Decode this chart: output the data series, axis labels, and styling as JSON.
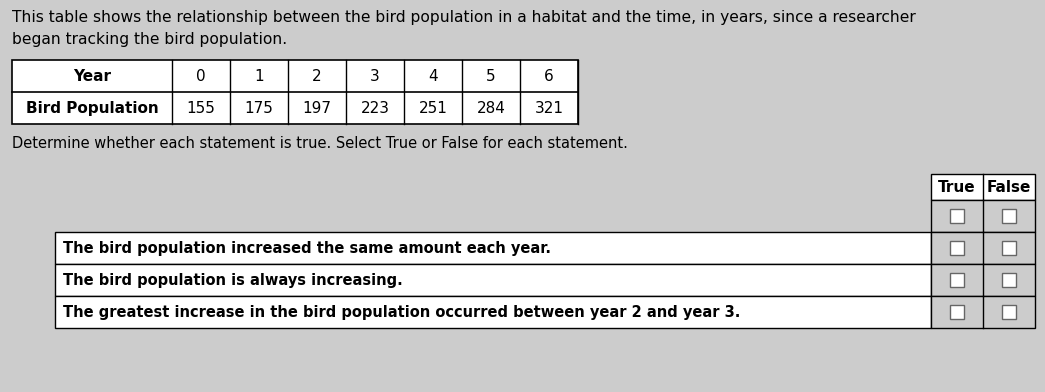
{
  "description_line1": "This table shows the relationship between the bird population in a habitat and the time, in years, since a researcher",
  "description_line2": "began tracking the bird population.",
  "table_headers": [
    "Year",
    "0",
    "1",
    "2",
    "3",
    "4",
    "5",
    "6"
  ],
  "table_row_label": "Bird Population",
  "table_row_values": [
    "155",
    "175",
    "197",
    "223",
    "251",
    "284",
    "321"
  ],
  "instruction": "Determine whether each statement is true. Select True or False for each statement.",
  "col_headers": [
    "True",
    "False"
  ],
  "statements": [
    "The bird population increased the same amount each year.",
    "The bird population is always increasing.",
    "The greatest increase in the bird population occurred between year 2 and year 3."
  ],
  "bg_color": "#cccccc",
  "table_bg": "#ffffff",
  "text_color": "#000000",
  "font_size_desc": 11.2,
  "font_size_table": 11.0,
  "font_size_instruction": 10.5,
  "font_size_statements": 10.5,
  "font_size_header": 11.0
}
